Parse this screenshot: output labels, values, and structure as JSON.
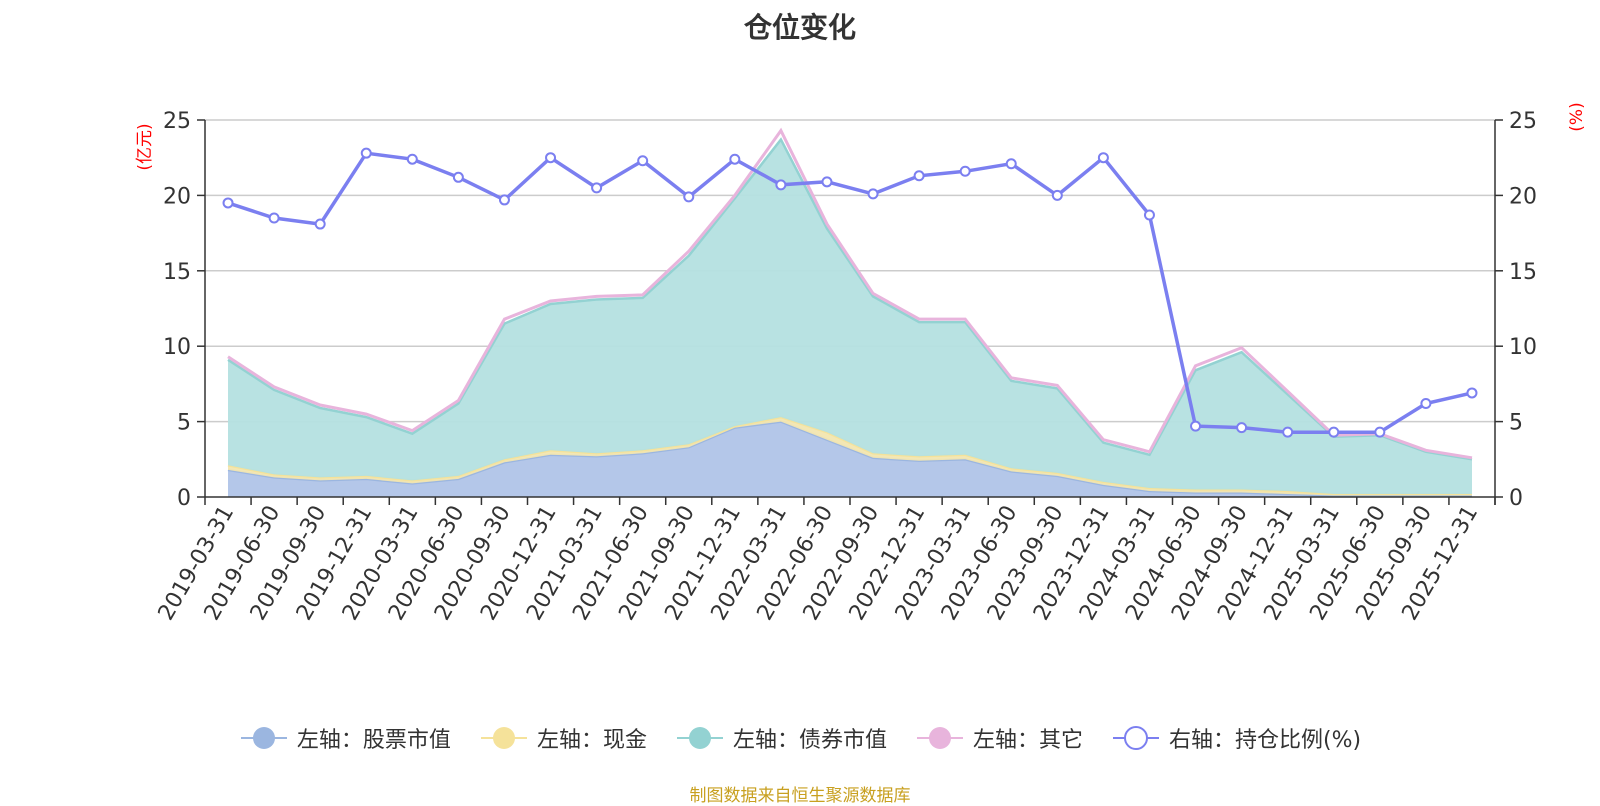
{
  "chart_data": {
    "title": "仓位变化",
    "type": "area",
    "left_unit_label": "(亿元)",
    "right_unit_label": "(%)",
    "ylim_left": [
      0,
      25
    ],
    "ylim_right": [
      0,
      25
    ],
    "y_ticks": [
      "0",
      "5",
      "10",
      "15",
      "20",
      "25"
    ],
    "grid": true,
    "legend_position": "bottom",
    "categories": [
      "2019-03-31",
      "2019-06-30",
      "2019-09-30",
      "2019-12-31",
      "2020-03-31",
      "2020-06-30",
      "2020-09-30",
      "2020-12-31",
      "2021-03-31",
      "2021-06-30",
      "2021-09-30",
      "2021-12-31",
      "2022-03-31",
      "2022-06-30",
      "2022-09-30",
      "2022-12-31",
      "2023-03-31",
      "2023-06-30",
      "2023-09-30",
      "2023-12-31",
      "2024-03-31",
      "2024-06-30",
      "2024-09-30",
      "2024-12-31",
      "2025-03-31",
      "2025-06-30",
      "2025-09-30",
      "2025-12-31"
    ],
    "series": [
      {
        "name": "左轴：股票市值",
        "axis": "left",
        "stack": true,
        "color": "#9bb6e0",
        "values": [
          1.8,
          1.3,
          1.1,
          1.2,
          0.9,
          1.2,
          2.3,
          2.8,
          2.7,
          2.9,
          3.3,
          4.6,
          5.0,
          3.8,
          2.6,
          2.4,
          2.5,
          1.7,
          1.4,
          0.8,
          0.4,
          0.3,
          0.3,
          0.2,
          0.1,
          0.1,
          0.1,
          0.1
        ]
      },
      {
        "name": "左轴：现金",
        "axis": "left",
        "stack": true,
        "color": "#f5e29a",
        "values": [
          0.3,
          0.2,
          0.2,
          0.2,
          0.2,
          0.2,
          0.2,
          0.3,
          0.2,
          0.2,
          0.2,
          0.1,
          0.3,
          0.5,
          0.3,
          0.3,
          0.3,
          0.2,
          0.2,
          0.2,
          0.2,
          0.2,
          0.2,
          0.2,
          0.1,
          0.1,
          0.1,
          0.1
        ]
      },
      {
        "name": "左轴：债券市值",
        "axis": "left",
        "stack": true,
        "color": "#93d2d2",
        "values": [
          7.0,
          5.6,
          4.6,
          3.9,
          3.1,
          4.8,
          9.0,
          9.7,
          10.2,
          10.1,
          12.5,
          15.1,
          18.4,
          13.5,
          10.4,
          8.9,
          8.8,
          5.8,
          5.6,
          2.6,
          2.2,
          7.9,
          9.1,
          6.4,
          3.8,
          3.9,
          2.8,
          2.3
        ]
      },
      {
        "name": "左轴：其它",
        "axis": "left",
        "stack": true,
        "color": "#e8b4dc",
        "values": [
          0.2,
          0.2,
          0.2,
          0.2,
          0.2,
          0.2,
          0.3,
          0.2,
          0.2,
          0.2,
          0.3,
          0.2,
          0.6,
          0.3,
          0.2,
          0.2,
          0.2,
          0.2,
          0.2,
          0.2,
          0.2,
          0.3,
          0.3,
          0.2,
          0.1,
          0.1,
          0.1,
          0.1
        ]
      },
      {
        "name": "右轴：持仓比例(%)",
        "axis": "right",
        "stack": false,
        "color": "#7b7ff0",
        "values": [
          19.5,
          18.5,
          18.1,
          22.8,
          22.4,
          21.2,
          19.7,
          22.5,
          20.5,
          22.3,
          19.9,
          22.4,
          20.7,
          20.9,
          20.1,
          21.3,
          21.6,
          22.1,
          20.0,
          22.5,
          18.7,
          4.7,
          4.6,
          4.3,
          4.3,
          4.3,
          6.2,
          6.9
        ]
      }
    ]
  },
  "colors": {
    "stock_fill": "#b0c4e8",
    "cash_fill": "#f2e6b0",
    "bond_fill": "#b4e0e0",
    "other_line": "#e8b4dc",
    "ratio_line": "#7b7ff0",
    "unit_label": "#ff0000",
    "source_text": "#c8a020"
  },
  "source_text": "制图数据来自恒生聚源数据库"
}
